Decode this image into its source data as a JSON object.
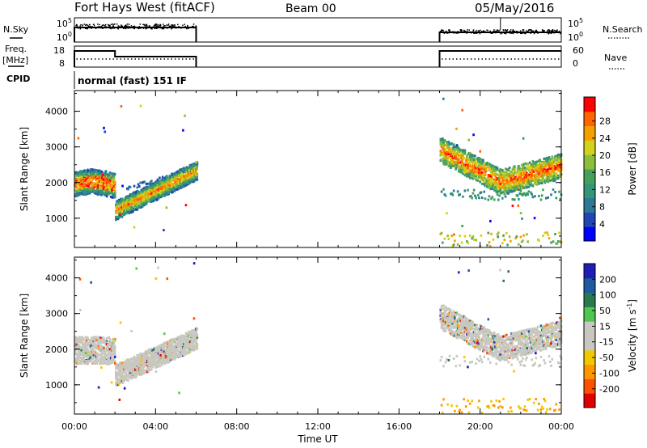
{
  "header": {
    "station": "Fort Hays West (fitACF)",
    "beam": "Beam 00",
    "date": "05/May/2016"
  },
  "time_axis": {
    "label": "Time UT",
    "ticks": [
      "00:00",
      "04:00",
      "08:00",
      "12:00",
      "16:00",
      "20:00",
      "00:00"
    ],
    "range_hours": [
      0,
      24
    ]
  },
  "status_panels": {
    "nsky": {
      "label": "N.Sky",
      "ticks": [
        "10^5",
        "10^0"
      ]
    },
    "nsearch": {
      "label": "N.Search",
      "ticks": [
        "10^5",
        "10^0"
      ]
    },
    "freq": {
      "label_top": "Freq.",
      "label_bottom": "[MHz]",
      "ticks": [
        "18",
        "8"
      ]
    },
    "nave": {
      "label": "Nave",
      "ticks": [
        "60",
        "0"
      ]
    },
    "cpid": {
      "label": "CPID",
      "text": "normal (fast) 151 IF"
    }
  },
  "colors": {
    "power_scale": [
      "#0000ff",
      "#1e46b4",
      "#2d7896",
      "#329678",
      "#46a05a",
      "#8cbe3c",
      "#d2d21e",
      "#f5a000",
      "#ff6400",
      "#ff0000"
    ],
    "velocity_scale": [
      "#e00000",
      "#ff5000",
      "#ff9600",
      "#f0c800",
      "#c8c8c0",
      "#c8c8c0",
      "#50c850",
      "#287850",
      "#1e5aa0",
      "#1e1eb4"
    ]
  },
  "chart_data": [
    {
      "type": "heatmap",
      "panel": "power",
      "xlabel": "",
      "ylabel": "Slant Range [km]",
      "yticks": [
        "1000",
        "2000",
        "3000",
        "4000"
      ],
      "ylim": [
        180,
        4580
      ],
      "xlim": [
        0,
        24
      ],
      "colorbar_label": "Power [dB]",
      "colorbar_ticks": [
        "4",
        "8",
        "12",
        "16",
        "20",
        "24",
        "28"
      ],
      "series": [
        {
          "name": "",
          "x": [
            0,
            0.5,
            1,
            1.5,
            2,
            2.5,
            3,
            3.5,
            4,
            4.5,
            5,
            5.5,
            6
          ],
          "y": [
            1900,
            1900,
            1950,
            1950,
            1200,
            1250,
            1400,
            1550,
            1700,
            1850,
            2000,
            2150,
            2300
          ]
        },
        {
          "name": "",
          "x": [
            18,
            18.5,
            19,
            19.5,
            20,
            20.5,
            21,
            21.5,
            22,
            22.5,
            23,
            23.5,
            24
          ],
          "y": [
            2750,
            2600,
            2450,
            2300,
            2150,
            2000,
            1950,
            1950,
            2050,
            2200,
            2300,
            2350,
            2450
          ]
        }
      ]
    },
    {
      "type": "heatmap",
      "panel": "velocity",
      "xlabel": "Time UT",
      "ylabel": "Slant Range [km]",
      "yticks": [
        "1000",
        "2000",
        "3000",
        "4000"
      ],
      "ylim": [
        180,
        4580
      ],
      "xlim": [
        0,
        24
      ],
      "colorbar_label": "Velocity [m s^-1]",
      "colorbar_ticks": [
        "200",
        "100",
        "50",
        "15",
        "-15",
        "-50",
        "-100",
        "-200"
      ]
    }
  ]
}
